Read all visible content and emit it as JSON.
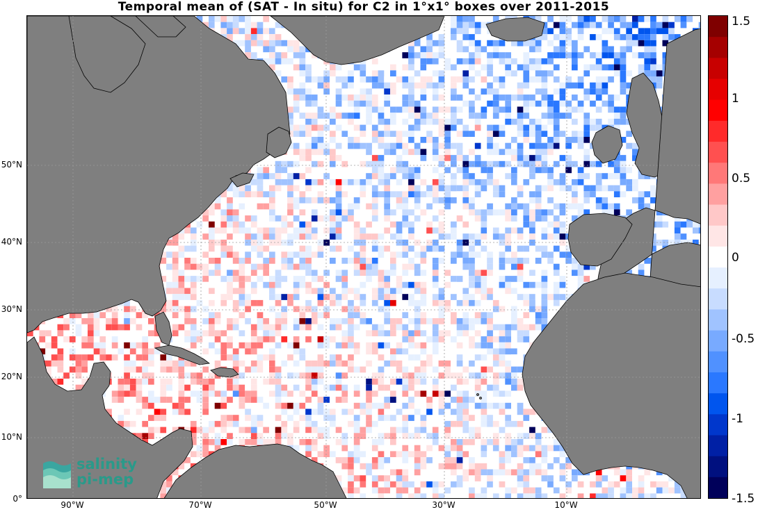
{
  "title": "Temporal mean of (SAT - In situ) for C2 in 1°x1° boxes over 2011-2015",
  "map": {
    "lat_labels": [
      "50°N",
      "40°N",
      "30°N",
      "20°N",
      "10°N",
      "0°"
    ],
    "lon_labels": [
      "90°W",
      "70°W",
      "50°W",
      "30°W",
      "10°W"
    ],
    "land_color": "#7f7f7f",
    "ocean_color": "#ffffff"
  },
  "colorbar": {
    "ticks": [
      "1.5",
      "1",
      "0.5",
      "0",
      "-0.5",
      "-1",
      "-1.5"
    ],
    "min": -1.5,
    "max": 1.5,
    "colors_top_to_bottom": [
      "#7f0000",
      "#a50000",
      "#c80000",
      "#e60000",
      "#ff0000",
      "#ff2a2a",
      "#ff5050",
      "#ff7878",
      "#ffa0a0",
      "#ffc8c8",
      "#ffe6e6",
      "#ffffff",
      "#e6f0ff",
      "#c8dcff",
      "#a0c3ff",
      "#78aaff",
      "#5091ff",
      "#2a78ff",
      "#0055ee",
      "#0037cc",
      "#0020a5",
      "#00107f",
      "#00005a"
    ]
  },
  "logo": {
    "line1": "salinity",
    "line2": "pi-mep"
  }
}
